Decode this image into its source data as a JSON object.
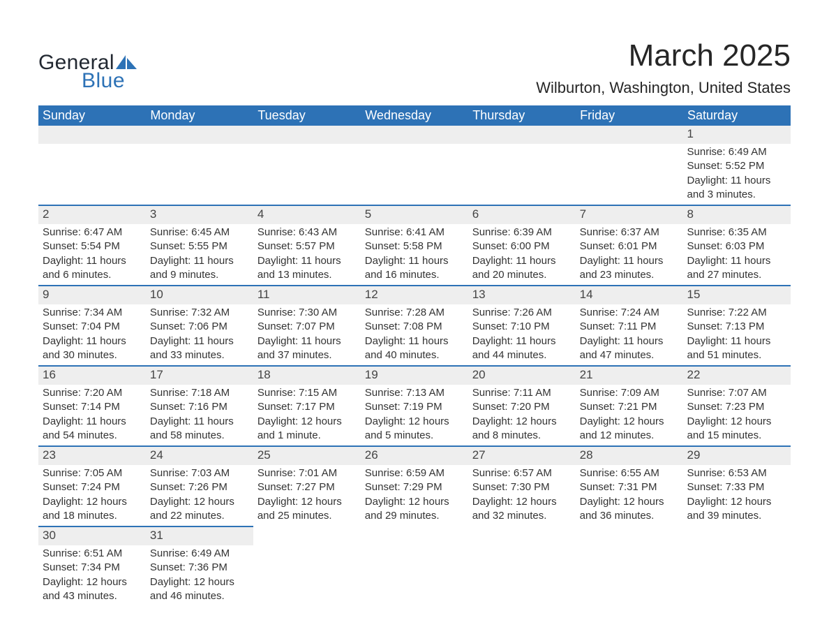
{
  "logo": {
    "word1": "General",
    "word2": "Blue",
    "shape_color": "#2d72b6",
    "word1_color": "#222831"
  },
  "title": "March 2025",
  "location": "Wilburton, Washington, United States",
  "colors": {
    "header_bg": "#2d72b6",
    "header_text": "#ffffff",
    "daynum_bg": "#eeeeee",
    "border": "#2d72b6",
    "body_text": "#333333",
    "title_text": "#262626"
  },
  "day_headers": [
    "Sunday",
    "Monday",
    "Tuesday",
    "Wednesday",
    "Thursday",
    "Friday",
    "Saturday"
  ],
  "weeks": [
    [
      null,
      null,
      null,
      null,
      null,
      null,
      {
        "n": "1",
        "sunrise": "6:49 AM",
        "sunset": "5:52 PM",
        "daylight": "11 hours and 3 minutes."
      }
    ],
    [
      {
        "n": "2",
        "sunrise": "6:47 AM",
        "sunset": "5:54 PM",
        "daylight": "11 hours and 6 minutes."
      },
      {
        "n": "3",
        "sunrise": "6:45 AM",
        "sunset": "5:55 PM",
        "daylight": "11 hours and 9 minutes."
      },
      {
        "n": "4",
        "sunrise": "6:43 AM",
        "sunset": "5:57 PM",
        "daylight": "11 hours and 13 minutes."
      },
      {
        "n": "5",
        "sunrise": "6:41 AM",
        "sunset": "5:58 PM",
        "daylight": "11 hours and 16 minutes."
      },
      {
        "n": "6",
        "sunrise": "6:39 AM",
        "sunset": "6:00 PM",
        "daylight": "11 hours and 20 minutes."
      },
      {
        "n": "7",
        "sunrise": "6:37 AM",
        "sunset": "6:01 PM",
        "daylight": "11 hours and 23 minutes."
      },
      {
        "n": "8",
        "sunrise": "6:35 AM",
        "sunset": "6:03 PM",
        "daylight": "11 hours and 27 minutes."
      }
    ],
    [
      {
        "n": "9",
        "sunrise": "7:34 AM",
        "sunset": "7:04 PM",
        "daylight": "11 hours and 30 minutes."
      },
      {
        "n": "10",
        "sunrise": "7:32 AM",
        "sunset": "7:06 PM",
        "daylight": "11 hours and 33 minutes."
      },
      {
        "n": "11",
        "sunrise": "7:30 AM",
        "sunset": "7:07 PM",
        "daylight": "11 hours and 37 minutes."
      },
      {
        "n": "12",
        "sunrise": "7:28 AM",
        "sunset": "7:08 PM",
        "daylight": "11 hours and 40 minutes."
      },
      {
        "n": "13",
        "sunrise": "7:26 AM",
        "sunset": "7:10 PM",
        "daylight": "11 hours and 44 minutes."
      },
      {
        "n": "14",
        "sunrise": "7:24 AM",
        "sunset": "7:11 PM",
        "daylight": "11 hours and 47 minutes."
      },
      {
        "n": "15",
        "sunrise": "7:22 AM",
        "sunset": "7:13 PM",
        "daylight": "11 hours and 51 minutes."
      }
    ],
    [
      {
        "n": "16",
        "sunrise": "7:20 AM",
        "sunset": "7:14 PM",
        "daylight": "11 hours and 54 minutes."
      },
      {
        "n": "17",
        "sunrise": "7:18 AM",
        "sunset": "7:16 PM",
        "daylight": "11 hours and 58 minutes."
      },
      {
        "n": "18",
        "sunrise": "7:15 AM",
        "sunset": "7:17 PM",
        "daylight": "12 hours and 1 minute."
      },
      {
        "n": "19",
        "sunrise": "7:13 AM",
        "sunset": "7:19 PM",
        "daylight": "12 hours and 5 minutes."
      },
      {
        "n": "20",
        "sunrise": "7:11 AM",
        "sunset": "7:20 PM",
        "daylight": "12 hours and 8 minutes."
      },
      {
        "n": "21",
        "sunrise": "7:09 AM",
        "sunset": "7:21 PM",
        "daylight": "12 hours and 12 minutes."
      },
      {
        "n": "22",
        "sunrise": "7:07 AM",
        "sunset": "7:23 PM",
        "daylight": "12 hours and 15 minutes."
      }
    ],
    [
      {
        "n": "23",
        "sunrise": "7:05 AM",
        "sunset": "7:24 PM",
        "daylight": "12 hours and 18 minutes."
      },
      {
        "n": "24",
        "sunrise": "7:03 AM",
        "sunset": "7:26 PM",
        "daylight": "12 hours and 22 minutes."
      },
      {
        "n": "25",
        "sunrise": "7:01 AM",
        "sunset": "7:27 PM",
        "daylight": "12 hours and 25 minutes."
      },
      {
        "n": "26",
        "sunrise": "6:59 AM",
        "sunset": "7:29 PM",
        "daylight": "12 hours and 29 minutes."
      },
      {
        "n": "27",
        "sunrise": "6:57 AM",
        "sunset": "7:30 PM",
        "daylight": "12 hours and 32 minutes."
      },
      {
        "n": "28",
        "sunrise": "6:55 AM",
        "sunset": "7:31 PM",
        "daylight": "12 hours and 36 minutes."
      },
      {
        "n": "29",
        "sunrise": "6:53 AM",
        "sunset": "7:33 PM",
        "daylight": "12 hours and 39 minutes."
      }
    ],
    [
      {
        "n": "30",
        "sunrise": "6:51 AM",
        "sunset": "7:34 PM",
        "daylight": "12 hours and 43 minutes."
      },
      {
        "n": "31",
        "sunrise": "6:49 AM",
        "sunset": "7:36 PM",
        "daylight": "12 hours and 46 minutes."
      },
      null,
      null,
      null,
      null,
      null
    ]
  ],
  "labels": {
    "sunrise": "Sunrise: ",
    "sunset": "Sunset: ",
    "daylight": "Daylight: "
  }
}
